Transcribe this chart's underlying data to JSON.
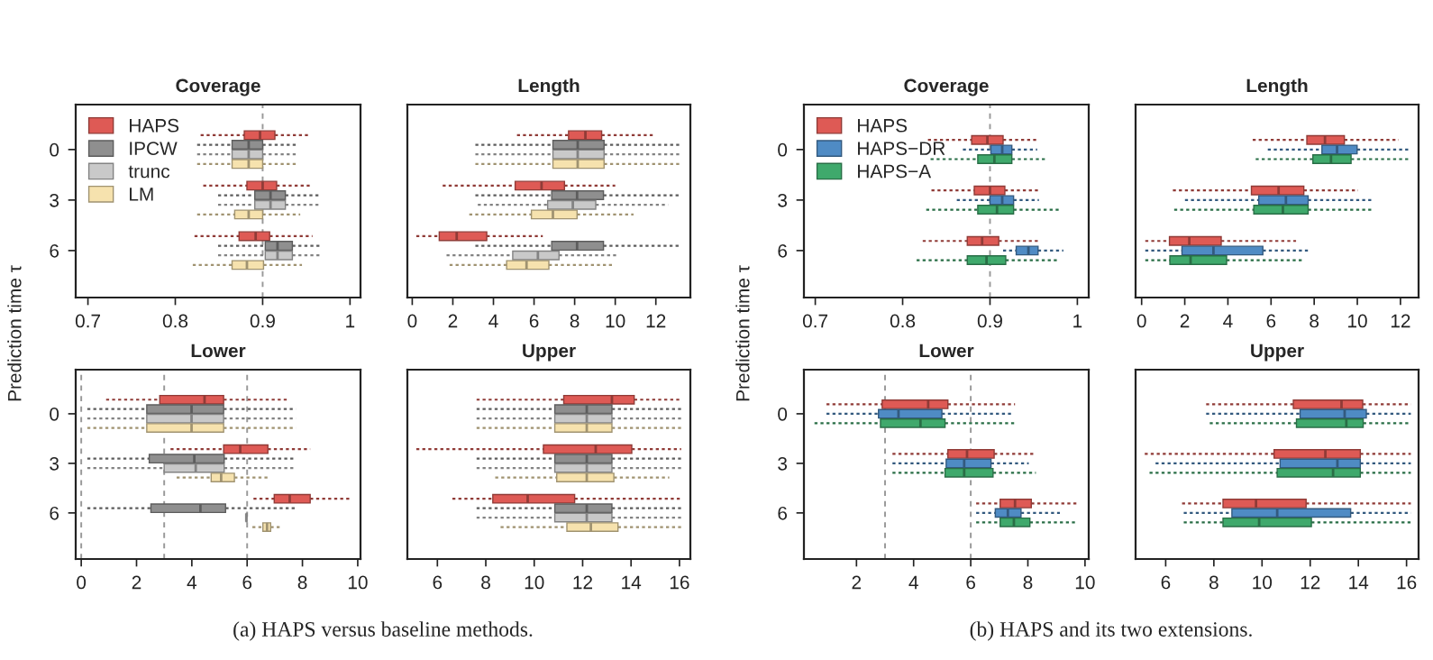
{
  "chart_data": [
    {
      "type": "box",
      "orientation": "horizontal",
      "title": "Coverage",
      "ylabel": "Prediction time τ",
      "categories": [
        "0",
        "3",
        "6"
      ],
      "xlim": [
        0.686,
        1.012
      ],
      "xticks": [
        0.7,
        0.8,
        0.9,
        1
      ],
      "legend": "top left",
      "ref_lines": [
        {
          "axis": "x",
          "value": 0.9,
          "color": "#999999",
          "line_style": "dashed"
        }
      ],
      "annotations": [
        "(a) HAPS versus baseline methods."
      ],
      "series": [
        {
          "name": "HAPS",
          "color": "#de5a55",
          "boxes": [
            {
              "low": 0.829,
              "q1": 0.879,
              "median": 0.897,
              "q3": 0.914,
              "high": 0.953
            },
            {
              "low": 0.832,
              "q1": 0.882,
              "median": 0.9,
              "q3": 0.916,
              "high": 0.955
            },
            {
              "low": 0.822,
              "q1": 0.873,
              "median": 0.892,
              "q3": 0.908,
              "high": 0.957
            }
          ]
        },
        {
          "name": "IPCW",
          "color": "#8f8f8f",
          "boxes": [
            {
              "low": 0.825,
              "q1": 0.865,
              "median": 0.884,
              "q3": 0.9,
              "high": 0.941
            },
            {
              "low": 0.849,
              "q1": 0.891,
              "median": 0.909,
              "q3": 0.926,
              "high": 0.964
            },
            {
              "low": 0.849,
              "q1": 0.903,
              "median": 0.917,
              "q3": 0.934,
              "high": 0.967
            }
          ]
        },
        {
          "name": "trunc",
          "color": "#c9c9c9",
          "boxes": [
            {
              "low": 0.825,
              "q1": 0.865,
              "median": 0.884,
              "q3": 0.9,
              "high": 0.941
            },
            {
              "low": 0.849,
              "q1": 0.891,
              "median": 0.909,
              "q3": 0.926,
              "high": 0.964
            },
            {
              "low": 0.849,
              "q1": 0.903,
              "median": 0.917,
              "q3": 0.934,
              "high": 0.967
            }
          ]
        },
        {
          "name": "LM",
          "color": "#f6e2ae",
          "boxes": [
            {
              "low": 0.825,
              "q1": 0.865,
              "median": 0.884,
              "q3": 0.9,
              "high": 0.941
            },
            {
              "low": 0.825,
              "q1": 0.868,
              "median": 0.884,
              "q3": 0.9,
              "high": 0.943
            },
            {
              "low": 0.82,
              "q1": 0.865,
              "median": 0.882,
              "q3": 0.901,
              "high": 0.945
            }
          ]
        }
      ]
    },
    {
      "type": "box",
      "orientation": "horizontal",
      "title": "Length",
      "categories": [
        "0",
        "3",
        "6"
      ],
      "xlim": [
        -0.24,
        13.7
      ],
      "xticks": [
        0,
        2,
        4,
        6,
        8,
        10,
        12
      ],
      "tick_labels": "x",
      "series": [
        {
          "color": "#de5a55",
          "boxes": [
            {
              "low": 5.16,
              "q1": 7.7,
              "median": 8.53,
              "q3": 9.33,
              "high": 11.9
            },
            {
              "low": 1.5,
              "q1": 5.07,
              "median": 6.37,
              "q3": 7.5,
              "high": 10.0
            },
            {
              "low": 0.2,
              "q1": 1.33,
              "median": 2.19,
              "q3": 3.67,
              "high": 6.43
            }
          ]
        },
        {
          "color": "#8f8f8f",
          "boxes": [
            {
              "low": 3.11,
              "q1": 6.93,
              "median": 8.15,
              "q3": 9.45,
              "high": 13.2
            },
            {
              "low": 3.11,
              "q1": 6.87,
              "median": 8.12,
              "q3": 9.42,
              "high": 13.2
            },
            {
              "low": 3.11,
              "q1": 6.87,
              "median": 8.12,
              "q3": 9.42,
              "high": 13.2
            }
          ]
        },
        {
          "color": "#c9c9c9",
          "boxes": [
            {
              "low": 3.11,
              "q1": 6.93,
              "median": 8.15,
              "q3": 9.45,
              "high": 13.2
            },
            {
              "low": 3.23,
              "q1": 6.67,
              "median": 7.91,
              "q3": 9.04,
              "high": 12.6
            },
            {
              "low": 1.69,
              "q1": 4.95,
              "median": 6.19,
              "q3": 7.23,
              "high": 10.1
            }
          ]
        },
        {
          "color": "#f6e2ae",
          "boxes": [
            {
              "low": 3.11,
              "q1": 6.93,
              "median": 8.15,
              "q3": 9.45,
              "high": 13.2
            },
            {
              "low": 2.81,
              "q1": 5.87,
              "median": 6.93,
              "q3": 8.12,
              "high": 10.9
            },
            {
              "low": 1.84,
              "q1": 4.65,
              "median": 5.63,
              "q3": 6.73,
              "high": 9.84
            }
          ]
        }
      ]
    },
    {
      "type": "box",
      "orientation": "horizontal",
      "title": "Lower",
      "categories": [
        "0",
        "3",
        "6"
      ],
      "xlim": [
        -0.2,
        10.1
      ],
      "xticks": [
        0,
        2,
        4,
        6,
        8,
        10
      ],
      "ref_lines": [
        {
          "axis": "x",
          "value": 0,
          "color": "#999999",
          "line_style": "dashed"
        },
        {
          "axis": "x",
          "value": 3,
          "color": "#999999",
          "line_style": "dashed"
        },
        {
          "axis": "x",
          "value": 6,
          "color": "#999999",
          "line_style": "dashed"
        }
      ],
      "series": [
        {
          "color": "#de5a55",
          "boxes": [
            {
              "low": 0.9,
              "q1": 2.84,
              "median": 4.46,
              "q3": 5.15,
              "high": 7.52
            },
            {
              "low": 3.23,
              "q1": 5.15,
              "median": 5.75,
              "q3": 6.75,
              "high": 8.28
            },
            {
              "low": 6.23,
              "q1": 6.98,
              "median": 7.54,
              "q3": 8.28,
              "high": 9.7
            }
          ]
        },
        {
          "color": "#8f8f8f",
          "boxes": [
            {
              "low": 0.22,
              "q1": 2.37,
              "median": 3.99,
              "q3": 5.15,
              "high": 7.76
            },
            {
              "low": 0.22,
              "q1": 2.46,
              "median": 4.09,
              "q3": 5.17,
              "high": 7.76
            },
            {
              "low": 0.22,
              "q1": 2.52,
              "median": 4.31,
              "q3": 5.22,
              "high": 7.76
            }
          ]
        },
        {
          "color": "#c9c9c9",
          "boxes": [
            {
              "low": 0.22,
              "q1": 2.37,
              "median": 3.99,
              "q3": 5.15,
              "high": 7.76
            },
            {
              "low": 0.22,
              "q1": 3.0,
              "median": 4.14,
              "q3": 5.17,
              "high": 7.76
            },
            {
              "low": 5.95,
              "q1": 5.97,
              "median": 5.97,
              "q3": 5.99,
              "high": 6.0
            }
          ]
        },
        {
          "color": "#f6e2ae",
          "boxes": [
            {
              "low": 0.22,
              "q1": 2.37,
              "median": 3.99,
              "q3": 5.15,
              "high": 7.76
            },
            {
              "low": 3.45,
              "q1": 4.7,
              "median": 5.06,
              "q3": 5.54,
              "high": 6.79
            },
            {
              "low": 6.19,
              "q1": 6.57,
              "median": 6.72,
              "q3": 6.85,
              "high": 7.22
            }
          ]
        }
      ]
    },
    {
      "type": "box",
      "orientation": "horizontal",
      "title": "Upper",
      "categories": [
        "0",
        "3",
        "6"
      ],
      "xlim": [
        4.76,
        16.45
      ],
      "xticks": [
        6,
        8,
        10,
        12,
        14,
        16
      ],
      "tick_labels": "x",
      "series": [
        {
          "color": "#de5a55",
          "boxes": [
            {
              "low": 7.62,
              "q1": 11.22,
              "median": 13.21,
              "q3": 14.13,
              "high": 16.07
            },
            {
              "low": 5.13,
              "q1": 10.38,
              "median": 12.54,
              "q3": 14.03,
              "high": 16.07
            },
            {
              "low": 6.62,
              "q1": 8.29,
              "median": 9.73,
              "q3": 11.67,
              "high": 16.07
            }
          ]
        },
        {
          "color": "#8f8f8f",
          "boxes": [
            {
              "low": 7.62,
              "q1": 10.85,
              "median": 12.17,
              "q3": 13.21,
              "high": 16.07
            },
            {
              "low": 7.62,
              "q1": 10.85,
              "median": 12.17,
              "q3": 13.21,
              "high": 16.07
            },
            {
              "low": 7.62,
              "q1": 10.85,
              "median": 12.17,
              "q3": 13.21,
              "high": 16.07
            }
          ]
        },
        {
          "color": "#c9c9c9",
          "boxes": [
            {
              "low": 7.62,
              "q1": 10.85,
              "median": 12.17,
              "q3": 13.21,
              "high": 16.07
            },
            {
              "low": 7.62,
              "q1": 10.85,
              "median": 12.17,
              "q3": 13.21,
              "high": 16.07
            },
            {
              "low": 7.62,
              "q1": 10.85,
              "median": 12.17,
              "q3": 13.21,
              "high": 16.07
            }
          ]
        },
        {
          "color": "#f6e2ae",
          "boxes": [
            {
              "low": 7.62,
              "q1": 10.85,
              "median": 12.17,
              "q3": 13.21,
              "high": 16.07
            },
            {
              "low": 8.39,
              "q1": 10.93,
              "median": 12.17,
              "q3": 13.29,
              "high": 15.58
            },
            {
              "low": 8.61,
              "q1": 11.35,
              "median": 12.34,
              "q3": 13.46,
              "high": 16.07
            }
          ]
        }
      ]
    },
    {
      "type": "box",
      "orientation": "horizontal",
      "title": "Coverage",
      "ylabel": "Prediction time τ",
      "categories": [
        "0",
        "3",
        "6"
      ],
      "xlim": [
        0.687,
        1.013
      ],
      "xticks": [
        0.7,
        0.8,
        0.9,
        1
      ],
      "legend": "top left",
      "ref_lines": [
        {
          "axis": "x",
          "value": 0.9,
          "color": "#999999",
          "line_style": "dashed"
        }
      ],
      "annotations": [
        "(b) HAPS and its two extensions."
      ],
      "series": [
        {
          "name": "HAPS",
          "color": "#de5a55",
          "boxes": [
            {
              "low": 0.829,
              "q1": 0.879,
              "median": 0.897,
              "q3": 0.915,
              "high": 0.954
            },
            {
              "low": 0.833,
              "q1": 0.882,
              "median": 0.9,
              "q3": 0.917,
              "high": 0.956
            },
            {
              "low": 0.823,
              "q1": 0.874,
              "median": 0.891,
              "q3": 0.91,
              "high": 0.958
            }
          ]
        },
        {
          "name": "HAPS−DR",
          "color": "#4f8bc4",
          "boxes": [
            {
              "low": 0.869,
              "q1": 0.901,
              "median": 0.914,
              "q3": 0.925,
              "high": 0.954
            },
            {
              "low": 0.862,
              "q1": 0.9,
              "median": 0.914,
              "q3": 0.927,
              "high": 0.956
            },
            {
              "low": 0.915,
              "q1": 0.93,
              "median": 0.944,
              "q3": 0.955,
              "high": 0.984
            }
          ]
        },
        {
          "name": "HAPS−A",
          "color": "#3fa96c",
          "boxes": [
            {
              "low": 0.832,
              "q1": 0.886,
              "median": 0.905,
              "q3": 0.925,
              "high": 0.965
            },
            {
              "low": 0.827,
              "q1": 0.886,
              "median": 0.908,
              "q3": 0.927,
              "high": 0.979
            },
            {
              "low": 0.816,
              "q1": 0.874,
              "median": 0.896,
              "q3": 0.918,
              "high": 0.979
            }
          ]
        }
      ]
    },
    {
      "type": "box",
      "orientation": "horizontal",
      "title": "Length",
      "categories": [
        "0",
        "3",
        "6"
      ],
      "xlim": [
        -0.28,
        12.84
      ],
      "xticks": [
        0,
        2,
        4,
        6,
        8,
        10,
        12
      ],
      "tick_labels": "x",
      "series": [
        {
          "color": "#de5a55",
          "boxes": [
            {
              "low": 5.15,
              "q1": 7.66,
              "median": 8.5,
              "q3": 9.4,
              "high": 11.92
            },
            {
              "low": 1.45,
              "q1": 5.09,
              "median": 6.35,
              "q3": 7.52,
              "high": 10.04
            },
            {
              "low": 0.17,
              "q1": 1.29,
              "median": 2.21,
              "q3": 3.69,
              "high": 7.16
            }
          ]
        },
        {
          "color": "#4f8bc4",
          "boxes": [
            {
              "low": 5.85,
              "q1": 8.36,
              "median": 9.06,
              "q3": 9.99,
              "high": 12.48
            },
            {
              "low": 2.01,
              "q1": 5.43,
              "median": 6.69,
              "q3": 7.72,
              "high": 10.66
            },
            {
              "low": 0.17,
              "q1": 1.87,
              "median": 3.33,
              "q3": 5.62,
              "high": 7.8
            }
          ]
        },
        {
          "color": "#3fa96c",
          "boxes": [
            {
              "low": 5.29,
              "q1": 7.94,
              "median": 8.78,
              "q3": 9.71,
              "high": 12.36
            },
            {
              "low": 1.51,
              "q1": 5.2,
              "median": 6.55,
              "q3": 7.72,
              "high": 10.66
            },
            {
              "low": 0.17,
              "q1": 1.31,
              "median": 2.27,
              "q3": 3.94,
              "high": 7.44
            }
          ]
        }
      ]
    },
    {
      "type": "box",
      "orientation": "horizontal",
      "title": "Lower",
      "categories": [
        "0",
        "3",
        "6"
      ],
      "xlim": [
        0.16,
        10.13
      ],
      "xticks": [
        2,
        4,
        6,
        8,
        10
      ],
      "ref_lines": [
        {
          "axis": "x",
          "value": 3,
          "color": "#999999",
          "line_style": "dashed"
        },
        {
          "axis": "x",
          "value": 6,
          "color": "#999999",
          "line_style": "dashed"
        }
      ],
      "series": [
        {
          "color": "#de5a55",
          "boxes": [
            {
              "low": 0.95,
              "q1": 2.9,
              "median": 4.51,
              "q3": 5.2,
              "high": 7.55
            },
            {
              "low": 3.26,
              "q1": 5.2,
              "median": 5.87,
              "q3": 6.82,
              "high": 8.28
            },
            {
              "low": 6.19,
              "q1": 7.03,
              "median": 7.55,
              "q3": 8.12,
              "high": 9.75
            }
          ]
        },
        {
          "color": "#4f8bc4",
          "boxes": [
            {
              "low": 0.95,
              "q1": 2.77,
              "median": 3.47,
              "q3": 4.99,
              "high": 7.51
            },
            {
              "low": 3.26,
              "q1": 5.14,
              "median": 5.77,
              "q3": 6.71,
              "high": 8.03
            },
            {
              "low": 6.19,
              "q1": 6.86,
              "median": 7.3,
              "q3": 7.76,
              "high": 9.12
            }
          ]
        },
        {
          "color": "#3fa96c",
          "boxes": [
            {
              "low": 0.53,
              "q1": 2.84,
              "median": 4.24,
              "q3": 5.1,
              "high": 7.55
            },
            {
              "low": 3.26,
              "q1": 5.1,
              "median": 5.77,
              "q3": 6.78,
              "high": 8.28
            },
            {
              "low": 6.19,
              "q1": 7.03,
              "median": 7.51,
              "q3": 8.07,
              "high": 9.71
            }
          ]
        }
      ]
    },
    {
      "type": "box",
      "orientation": "horizontal",
      "title": "Upper",
      "categories": [
        "0",
        "3",
        "6"
      ],
      "xlim": [
        4.75,
        16.5
      ],
      "xticks": [
        6,
        8,
        10,
        12,
        14,
        16
      ],
      "tick_labels": "x",
      "series": [
        {
          "color": "#de5a55",
          "boxes": [
            {
              "low": 7.68,
              "q1": 11.3,
              "median": 13.3,
              "q3": 14.18,
              "high": 16.18
            },
            {
              "low": 5.13,
              "q1": 10.5,
              "median": 12.63,
              "q3": 14.08,
              "high": 16.18
            },
            {
              "low": 6.68,
              "q1": 8.38,
              "median": 9.75,
              "q3": 11.83,
              "high": 16.18
            }
          ]
        },
        {
          "color": "#4f8bc4",
          "boxes": [
            {
              "low": 7.68,
              "q1": 11.58,
              "median": 13.43,
              "q3": 14.33,
              "high": 16.18
            },
            {
              "low": 5.58,
              "q1": 10.75,
              "median": 13.13,
              "q3": 14.08,
              "high": 16.18
            },
            {
              "low": 6.75,
              "q1": 8.75,
              "median": 10.63,
              "q3": 13.68,
              "high": 16.18
            }
          ]
        },
        {
          "color": "#3fa96c",
          "boxes": [
            {
              "low": 7.83,
              "q1": 11.43,
              "median": 13.5,
              "q3": 14.2,
              "high": 16.18
            },
            {
              "low": 5.33,
              "q1": 10.63,
              "median": 12.95,
              "q3": 14.08,
              "high": 16.18
            },
            {
              "low": 6.75,
              "q1": 8.38,
              "median": 9.88,
              "q3": 12.05,
              "high": 16.18
            }
          ]
        }
      ]
    }
  ]
}
